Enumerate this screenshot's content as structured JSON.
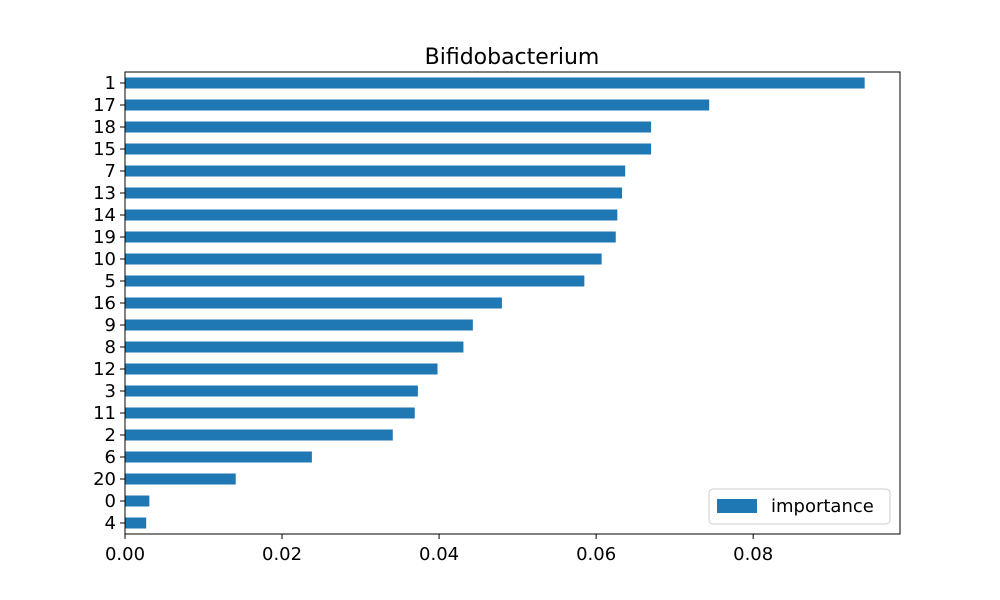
{
  "chart_data": {
    "type": "bar",
    "orientation": "horizontal",
    "title": "Bifidobacterium",
    "xlabel": "",
    "ylabel": "",
    "xlim": [
      0,
      0.0987
    ],
    "xticks": [
      0.0,
      0.02,
      0.04,
      0.06,
      0.08
    ],
    "xtick_labels": [
      "0.00",
      "0.02",
      "0.04",
      "0.06",
      "0.08"
    ],
    "grid": false,
    "legend_position": "lower-right",
    "color": "#1f77b4",
    "categories": [
      "4",
      "0",
      "20",
      "6",
      "2",
      "11",
      "3",
      "12",
      "8",
      "9",
      "16",
      "5",
      "10",
      "19",
      "14",
      "13",
      "7",
      "15",
      "18",
      "17",
      "1"
    ],
    "series": [
      {
        "name": "importance",
        "values": [
          0.0027,
          0.0031,
          0.0141,
          0.0238,
          0.0341,
          0.0369,
          0.0373,
          0.0398,
          0.0431,
          0.0443,
          0.048,
          0.0585,
          0.0607,
          0.0625,
          0.0627,
          0.0633,
          0.0637,
          0.067,
          0.067,
          0.0744,
          0.0942
        ]
      }
    ]
  }
}
